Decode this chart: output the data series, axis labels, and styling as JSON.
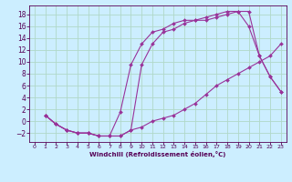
{
  "xlabel": "Windchill (Refroidissement éolien,°C)",
  "background_color": "#cceeff",
  "grid_color": "#b0d8c8",
  "line_color": "#993399",
  "x_ticks": [
    0,
    1,
    2,
    3,
    4,
    5,
    6,
    7,
    8,
    9,
    10,
    11,
    12,
    13,
    14,
    15,
    16,
    17,
    18,
    19,
    20,
    21,
    22,
    23
  ],
  "y_ticks": [
    -2,
    0,
    2,
    4,
    6,
    8,
    10,
    12,
    14,
    16,
    18
  ],
  "xlim": [
    -0.5,
    23.5
  ],
  "ylim": [
    -3.5,
    19.5
  ],
  "line1_x": [
    1,
    2,
    3,
    4,
    5,
    6,
    7,
    8,
    9,
    10,
    11,
    12,
    13,
    14,
    15,
    16,
    17,
    18,
    19,
    20,
    21,
    22,
    23
  ],
  "line1_y": [
    1,
    -0.5,
    -1.5,
    -2,
    -2,
    -2.5,
    -2.5,
    -2.5,
    -1.5,
    -1,
    0,
    0.5,
    1,
    2,
    3,
    4.5,
    6,
    7,
    8,
    9,
    10,
    11,
    13
  ],
  "line2_x": [
    1,
    2,
    3,
    4,
    5,
    6,
    7,
    8,
    9,
    10,
    11,
    12,
    13,
    14,
    15,
    16,
    17,
    18,
    19,
    20,
    21,
    22,
    23
  ],
  "line2_y": [
    1,
    -0.5,
    -1.5,
    -2,
    -2,
    -2.5,
    -2.5,
    1.5,
    9.5,
    13,
    15,
    15.5,
    16.5,
    17,
    17,
    17.5,
    18,
    18.5,
    18.5,
    16,
    11,
    7.5,
    5
  ],
  "line3_x": [
    1,
    2,
    3,
    4,
    5,
    6,
    7,
    8,
    9,
    10,
    11,
    12,
    13,
    14,
    15,
    16,
    17,
    18,
    19,
    20,
    21,
    22,
    23
  ],
  "line3_y": [
    1,
    -0.5,
    -1.5,
    -2,
    -2,
    -2.5,
    -2.5,
    -2.5,
    -1.5,
    9.5,
    13,
    15,
    15.5,
    16.5,
    17,
    17,
    17.5,
    18,
    18.5,
    18.5,
    11,
    7.5,
    5
  ]
}
